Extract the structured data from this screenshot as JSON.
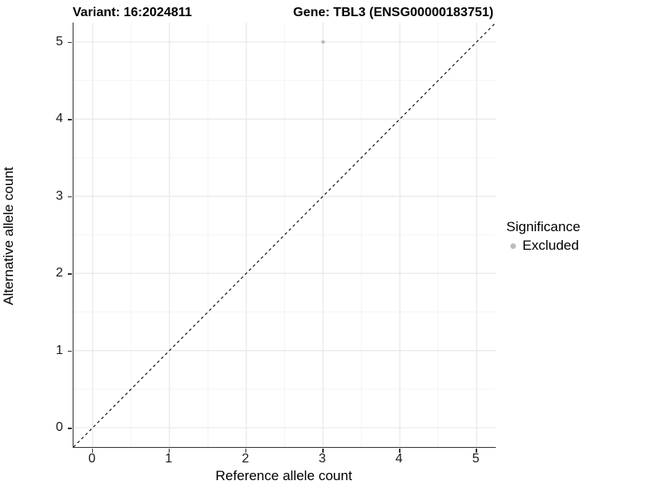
{
  "titles": {
    "left": "Variant: 16:2024811",
    "right": "Gene: TBL3 (ENSG00000183751)"
  },
  "chart_data": {
    "type": "scatter",
    "title_left": "Variant: 16:2024811",
    "title_right": "Gene: TBL3 (ENSG00000183751)",
    "xlabel": "Reference allele count",
    "ylabel": "Alternative allele count",
    "xlim": [
      -0.25,
      5.25
    ],
    "ylim": [
      -0.25,
      5.25
    ],
    "x_ticks": [
      0,
      1,
      2,
      3,
      4,
      5
    ],
    "y_ticks": [
      0,
      1,
      2,
      3,
      4,
      5
    ],
    "minor_ticks": [
      0.5,
      1.5,
      2.5,
      3.5,
      4.5
    ],
    "grid": "major+minor",
    "reference_line": {
      "slope": 1,
      "intercept": 0,
      "style": "dashed",
      "color": "#000000"
    },
    "series": [
      {
        "name": "Excluded",
        "color": "#bdbdbd",
        "points": [
          {
            "x": 3,
            "y": 5
          }
        ]
      }
    ],
    "legend": {
      "title": "Significance",
      "position": "right",
      "items": [
        {
          "label": "Excluded",
          "color": "#bdbdbd"
        }
      ]
    }
  },
  "colors": {
    "background": "#ffffff",
    "axis_line": "#333333",
    "grid_major": "#e6e6e6",
    "grid_minor": "#f2f2f2",
    "point": "#bdbdbd",
    "text": "#000000"
  }
}
